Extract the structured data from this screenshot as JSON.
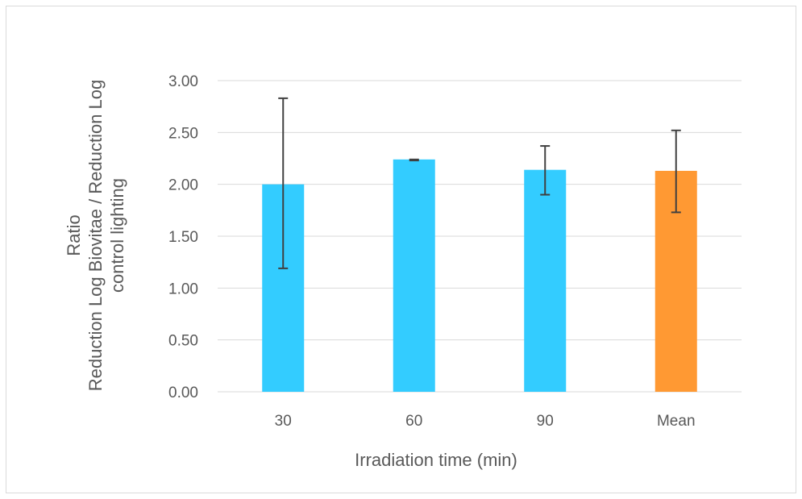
{
  "chart_data": {
    "type": "bar",
    "xlabel": "Irradiation time (min)",
    "ylabel_lines": [
      "Ratio",
      "Reduction Log Biovitae / Reduction Log",
      "control lighting"
    ],
    "categories": [
      "30",
      "60",
      "90",
      "Mean"
    ],
    "values": [
      2.0,
      2.24,
      2.14,
      2.13
    ],
    "error_low": [
      1.19,
      2.23,
      1.9,
      1.73
    ],
    "error_high": [
      2.83,
      2.24,
      2.37,
      2.52
    ],
    "bar_colors": [
      "#33CCFF",
      "#33CCFF",
      "#33CCFF",
      "#FF9933"
    ],
    "ylim": [
      0,
      3
    ],
    "yticks": [
      0,
      0.5,
      1.0,
      1.5,
      2.0,
      2.5,
      3.0
    ],
    "ytick_labels": [
      "0.00",
      "0.50",
      "1.00",
      "1.50",
      "2.00",
      "2.50",
      "3.00"
    ],
    "grid": true,
    "gridline_color": "#d9d9d9",
    "error_bar_color": "#404040"
  }
}
